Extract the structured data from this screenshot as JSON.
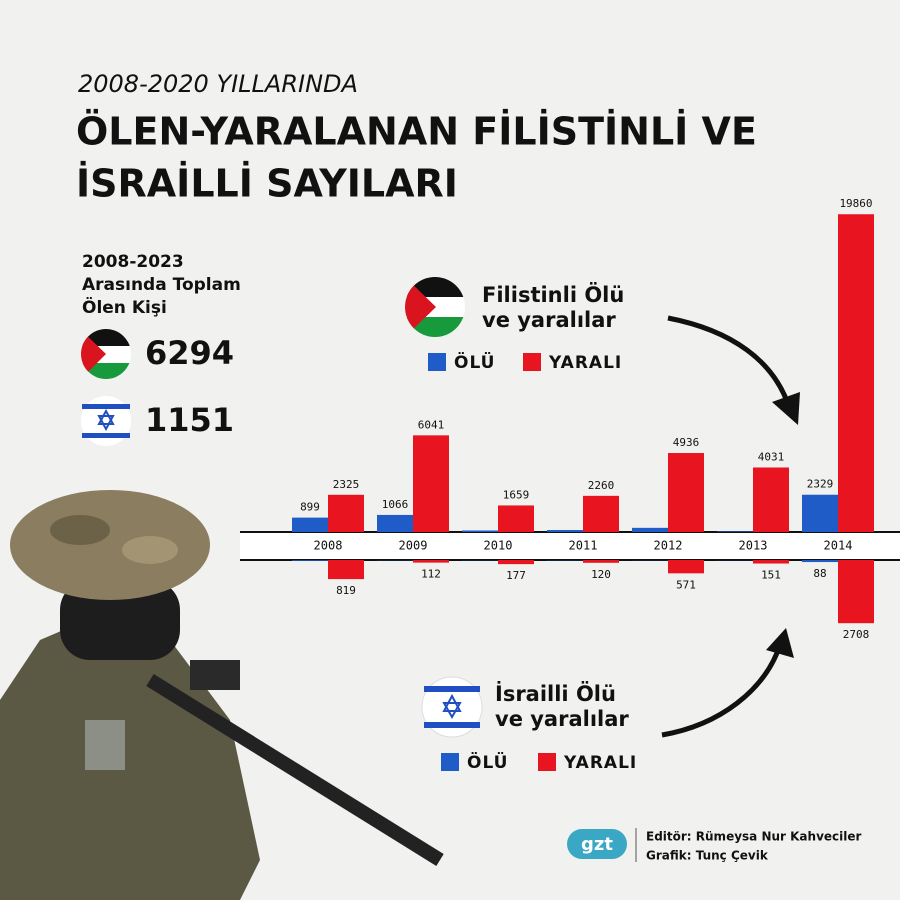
{
  "chart_data": {
    "type": "bar",
    "subtitle": "2008-2020 YILLARINDA",
    "title": [
      "ÖLEN-YARALANAN FİLİSTİNLİ VE",
      "İSRAİLLİ SAYILARI"
    ],
    "categories": [
      "2008",
      "2009",
      "2010",
      "2011",
      "2012",
      "2013",
      "2014"
    ],
    "ylim": [
      0,
      20000
    ],
    "y2lim": [
      0,
      3000
    ],
    "groups": [
      {
        "title": [
          "Filistinli Ölü",
          "ve yaralılar"
        ],
        "axis": "y",
        "series": [
          {
            "name": "ÖLÜ",
            "color": "#1f5cc7",
            "values": [
              899,
              1066,
              95,
              124,
              260,
              39,
              2329
            ],
            "value_labels": [
              "899",
              "1066",
              null,
              null,
              null,
              null,
              "2329"
            ]
          },
          {
            "name": "YARALI",
            "color": "#e8141f",
            "values": [
              2325,
              6041,
              1659,
              2260,
              4936,
              4031,
              19860
            ],
            "value_labels": [
              "2325",
              "6041",
              "1659",
              "2260",
              "4936",
              "4031",
              "19860"
            ]
          }
        ]
      },
      {
        "title": [
          "İsrailli Ölü",
          "ve yaralılar"
        ],
        "axis": "y2",
        "series": [
          {
            "name": "ÖLÜ",
            "color": "#1f5cc7",
            "values": [
              35,
              9,
              9,
              11,
              7,
              6,
              88
            ],
            "value_labels": [
              null,
              null,
              null,
              null,
              null,
              null,
              "88"
            ]
          },
          {
            "name": "YARALI",
            "color": "#e8141f",
            "values": [
              819,
              112,
              177,
              120,
              571,
              151,
              2708
            ],
            "value_labels": [
              "819",
              "112",
              "177",
              "120",
              "571",
              "151",
              "2708"
            ]
          }
        ]
      }
    ]
  },
  "totals": {
    "heading": [
      "2008-2023",
      "Arasında Toplam",
      "Ölen Kişi"
    ],
    "palestine": 6294,
    "israel": 1151
  },
  "credits": {
    "logo": "gzt",
    "editor": "Editör: Rümeysa Nur Kahveciler",
    "graphic": "Grafik: Tunç Çevik"
  }
}
